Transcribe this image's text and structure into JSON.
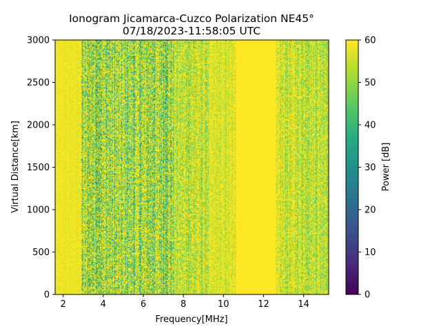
{
  "chart_data": {
    "type": "heatmap",
    "title_line1": "Ionogram Jicamarca-Cuzco Polarization NE45°",
    "title_line2": "07/18/2023-11:58:05 UTC",
    "xlabel": "Frequency[MHz]",
    "ylabel": "Virtual Distance[km]",
    "xlim": [
      1.6,
      15.25
    ],
    "ylim": [
      0,
      3000
    ],
    "xticks": [
      2,
      4,
      6,
      8,
      10,
      12,
      14
    ],
    "xtick_labels": [
      "2",
      "4",
      "6",
      "8",
      "10",
      "12",
      "14"
    ],
    "yticks": [
      0,
      500,
      1000,
      1500,
      2000,
      2500,
      3000
    ],
    "ytick_labels": [
      "0",
      "500",
      "1000",
      "1500",
      "2000",
      "2500",
      "3000"
    ],
    "colorbar": {
      "label": "Power [dB]",
      "range": [
        0,
        60
      ],
      "ticks": [
        0,
        10,
        20,
        30,
        40,
        50,
        60
      ],
      "tick_labels": [
        "0",
        "10",
        "20",
        "30",
        "40",
        "50",
        "60"
      ],
      "colormap": "viridis"
    },
    "grid": false,
    "description_bands": [
      {
        "freq_range": [
          1.6,
          2.9
        ],
        "typical_power_db": 58
      },
      {
        "freq_range": [
          2.9,
          7.5
        ],
        "typical_power_db": 47
      },
      {
        "freq_range": [
          7.5,
          9.3
        ],
        "typical_power_db": 52
      },
      {
        "freq_range": [
          9.3,
          10.6
        ],
        "typical_power_db": 55
      },
      {
        "freq_range": [
          10.6,
          12.6
        ],
        "typical_power_db": 60
      },
      {
        "freq_range": [
          12.6,
          15.25
        ],
        "typical_power_db": 53
      }
    ]
  }
}
